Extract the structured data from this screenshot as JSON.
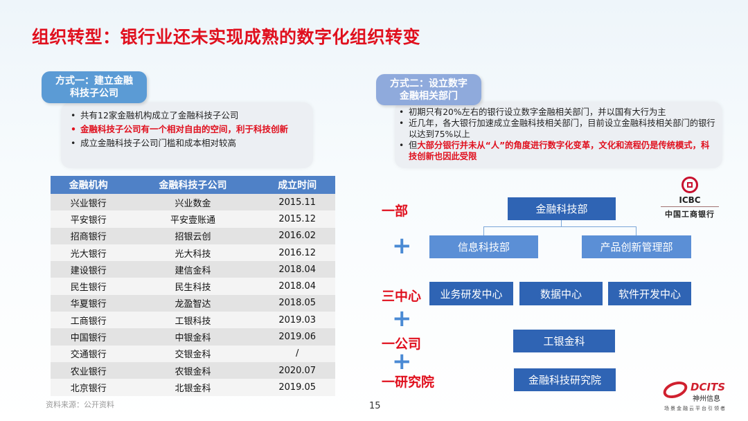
{
  "title": "组织转型：银行业还未实现成熟的数字化组织转变",
  "left": {
    "label": [
      "方式一：建立金融",
      "科技子公司"
    ],
    "bullets": [
      {
        "text": "共有12家金融机构成立了金融科技子公司",
        "highlight": false
      },
      {
        "text": "金融科技子公司有一个相对自由的空间，利于科技创新",
        "highlight": true
      },
      {
        "text": "成立金融科技子公司门槛和成本相对较高",
        "highlight": false
      }
    ],
    "table": {
      "headers": [
        "金融机构",
        "金融科技子公司",
        "成立时间"
      ],
      "rows": [
        [
          "兴业银行",
          "兴业数金",
          "2015.11"
        ],
        [
          "平安银行",
          "平安壹账通",
          "2015.12"
        ],
        [
          "招商银行",
          "招银云创",
          "2016.02"
        ],
        [
          "光大银行",
          "光大科技",
          "2016.12"
        ],
        [
          "建设银行",
          "建信金科",
          "2018.04"
        ],
        [
          "民生银行",
          "民生科技",
          "2018.04"
        ],
        [
          "华夏银行",
          "龙盈智达",
          "2018.05"
        ],
        [
          "工商银行",
          "工银科技",
          "2019.03"
        ],
        [
          "中国银行",
          "中银金科",
          "2019.06"
        ],
        [
          "交通银行",
          "交银金科",
          "/"
        ],
        [
          "农业银行",
          "农银金科",
          "2020.07"
        ],
        [
          "北京银行",
          "北银金科",
          "2019.05"
        ]
      ]
    },
    "source": "资料来源：公开资料"
  },
  "right": {
    "label": [
      "方式二：设立数字",
      "金融相关部门"
    ],
    "bullets": [
      {
        "plain": "初期只有20%左右的银行设立数字金融相关部门，并以国有大行为主",
        "red": ""
      },
      {
        "plain": "近几年，各大银行加速成立金融科技相关部门，目前设立金融科技相关部门的银行以达到75%以上",
        "red": ""
      },
      {
        "plain": "但",
        "red": "大部分银行并未从“人”的角度进行数字化变革，文化和流程仍是传统模式，科技创新也因此受限"
      }
    ],
    "org": {
      "yibu": "一部",
      "sanzhongxin": "三中心",
      "yigongsi": "一公司",
      "yiyanjiuyuan": "一研究院",
      "plus": "+",
      "fintech_dept": "金融科技部",
      "info_dept": "信息科技部",
      "product_dept": "产品创新管理部",
      "centers": [
        "业务研发中心",
        "数据中心",
        "软件开发中心"
      ],
      "company": "工银金科",
      "institute": "金融科技研究院"
    },
    "icbc": {
      "en": "ICBC",
      "cn": "中国工商银行"
    }
  },
  "dcits": {
    "en": "DCITS",
    "cn": "神州信息",
    "slogan": "场景金融云平台引领者"
  },
  "page_number": "15",
  "colors": {
    "title_red": "#e0101e",
    "label_blue": "#5b9bd5",
    "label_blue2": "#8faadc",
    "box_dark": "#2f64b4",
    "box_light": "#5b8fd6"
  }
}
